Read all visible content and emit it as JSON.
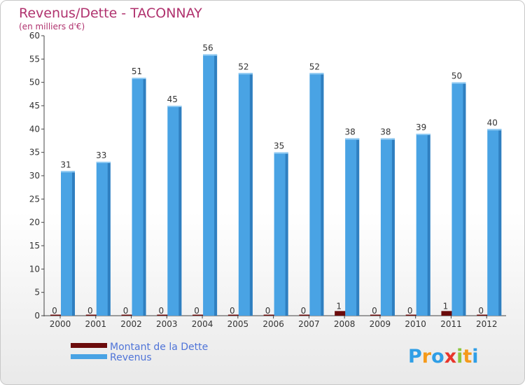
{
  "chart_data": {
    "type": "bar",
    "title": "Revenus/Dette - TACONNAY",
    "subtitle": "(en milliers d'€)",
    "categories": [
      "2000",
      "2001",
      "2002",
      "2003",
      "2004",
      "2005",
      "2006",
      "2007",
      "2008",
      "2009",
      "2010",
      "2011",
      "2012"
    ],
    "series": [
      {
        "name": "Montant de la Dette",
        "color": "#6b0b0b",
        "values": [
          0,
          0,
          0,
          0,
          0,
          0,
          0,
          0,
          1,
          0,
          0,
          1,
          0
        ]
      },
      {
        "name": "Revenus",
        "color": "#49a3e4",
        "values": [
          31,
          33,
          51,
          45,
          56,
          52,
          35,
          52,
          38,
          38,
          39,
          50,
          40
        ]
      }
    ],
    "ylim": [
      0,
      60
    ],
    "yticks": [
      0,
      5,
      10,
      15,
      20,
      25,
      30,
      35,
      40,
      45,
      50,
      55,
      60
    ],
    "xlabel": "",
    "ylabel": "",
    "grid": false,
    "legend_position": "bottom-left"
  },
  "brand": {
    "name": "Proxiti",
    "letters": [
      "P",
      "r",
      "o",
      "x",
      "i",
      "t",
      "i"
    ],
    "colors": [
      "#2f9ee6",
      "#f59a1b",
      "#2f9ee6",
      "#e8352b",
      "#8cc63f",
      "#f59a1b",
      "#2f9ee6"
    ]
  }
}
